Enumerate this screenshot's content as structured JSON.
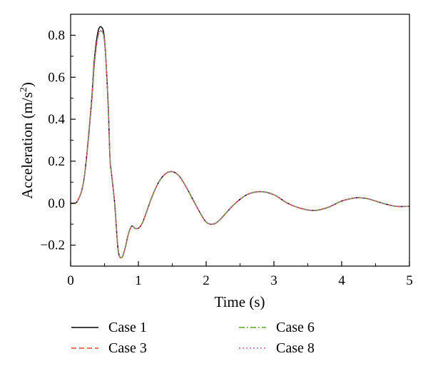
{
  "chart_data": {
    "type": "line",
    "xlabel": "Time (s)",
    "ylabel_main": "Acceleration (m/s",
    "ylabel_sup": "2",
    "ylabel_end": ")",
    "xlim": [
      0,
      5
    ],
    "ylim": [
      -0.3,
      0.9
    ],
    "xticks": [
      0,
      1,
      2,
      3,
      4,
      5
    ],
    "xtick_labels": [
      "0",
      "1",
      "2",
      "3",
      "4",
      "5"
    ],
    "yticks": [
      -0.2,
      0.0,
      0.2,
      0.4,
      0.6,
      0.8
    ],
    "ytick_labels": [
      "−0.2",
      "0.0",
      "0.2",
      "0.4",
      "0.6",
      "0.8"
    ],
    "grid": false,
    "legend_position": "bottom",
    "x": [
      0,
      0.1,
      0.2,
      0.3,
      0.35,
      0.4,
      0.45,
      0.5,
      0.55,
      0.58,
      0.6,
      0.65,
      0.7,
      0.75,
      0.8,
      0.85,
      0.9,
      0.95,
      1.0,
      1.05,
      1.1,
      1.2,
      1.3,
      1.4,
      1.5,
      1.6,
      1.7,
      1.8,
      1.9,
      2.0,
      2.1,
      2.2,
      2.4,
      2.6,
      2.8,
      3.0,
      3.2,
      3.4,
      3.6,
      3.8,
      4.0,
      4.2,
      4.3,
      4.4,
      4.6,
      4.8,
      5.0
    ],
    "series": [
      {
        "name": "Case 1",
        "color": "#000000",
        "dash": "solid",
        "values": [
          0.0,
          0.01,
          0.12,
          0.45,
          0.68,
          0.81,
          0.84,
          0.78,
          0.5,
          0.22,
          0.15,
          0.0,
          -0.22,
          -0.26,
          -0.22,
          -0.15,
          -0.11,
          -0.12,
          -0.12,
          -0.1,
          -0.06,
          0.03,
          0.1,
          0.14,
          0.15,
          0.13,
          0.08,
          0.02,
          -0.04,
          -0.09,
          -0.1,
          -0.08,
          -0.01,
          0.04,
          0.055,
          0.04,
          0.0,
          -0.025,
          -0.035,
          -0.02,
          0.01,
          0.025,
          0.025,
          0.02,
          0.0,
          -0.015,
          -0.015
        ]
      },
      {
        "name": "Case 3",
        "color": "#e8402a",
        "dash": "dashed",
        "values": [
          0.0,
          0.01,
          0.12,
          0.44,
          0.66,
          0.79,
          0.82,
          0.77,
          0.5,
          0.22,
          0.15,
          0.0,
          -0.22,
          -0.26,
          -0.22,
          -0.15,
          -0.11,
          -0.12,
          -0.12,
          -0.1,
          -0.06,
          0.03,
          0.1,
          0.14,
          0.15,
          0.13,
          0.08,
          0.02,
          -0.04,
          -0.09,
          -0.1,
          -0.08,
          -0.01,
          0.04,
          0.055,
          0.04,
          0.0,
          -0.025,
          -0.035,
          -0.02,
          0.01,
          0.025,
          0.025,
          0.02,
          0.0,
          -0.015,
          -0.015
        ]
      },
      {
        "name": "Case 6",
        "color": "#5aa52a",
        "dash": "dashdot",
        "values": [
          0.0,
          0.01,
          0.12,
          0.44,
          0.66,
          0.79,
          0.82,
          0.77,
          0.5,
          0.22,
          0.15,
          0.0,
          -0.22,
          -0.26,
          -0.22,
          -0.15,
          -0.11,
          -0.12,
          -0.12,
          -0.1,
          -0.06,
          0.03,
          0.1,
          0.14,
          0.15,
          0.13,
          0.08,
          0.02,
          -0.04,
          -0.09,
          -0.1,
          -0.08,
          -0.01,
          0.04,
          0.055,
          0.04,
          0.0,
          -0.025,
          -0.035,
          -0.02,
          0.01,
          0.025,
          0.025,
          0.02,
          0.0,
          -0.015,
          -0.015
        ]
      },
      {
        "name": "Case 8",
        "color": "#d15bd1",
        "dash": "dotted",
        "values": [
          0.0,
          0.01,
          0.12,
          0.44,
          0.66,
          0.79,
          0.82,
          0.77,
          0.5,
          0.22,
          0.15,
          0.0,
          -0.22,
          -0.26,
          -0.22,
          -0.15,
          -0.11,
          -0.12,
          -0.12,
          -0.1,
          -0.06,
          0.03,
          0.1,
          0.14,
          0.15,
          0.13,
          0.08,
          0.02,
          -0.04,
          -0.09,
          -0.1,
          -0.08,
          -0.01,
          0.04,
          0.055,
          0.04,
          0.0,
          -0.025,
          -0.035,
          -0.02,
          0.01,
          0.025,
          0.025,
          0.02,
          0.0,
          -0.015,
          -0.015
        ]
      }
    ]
  }
}
